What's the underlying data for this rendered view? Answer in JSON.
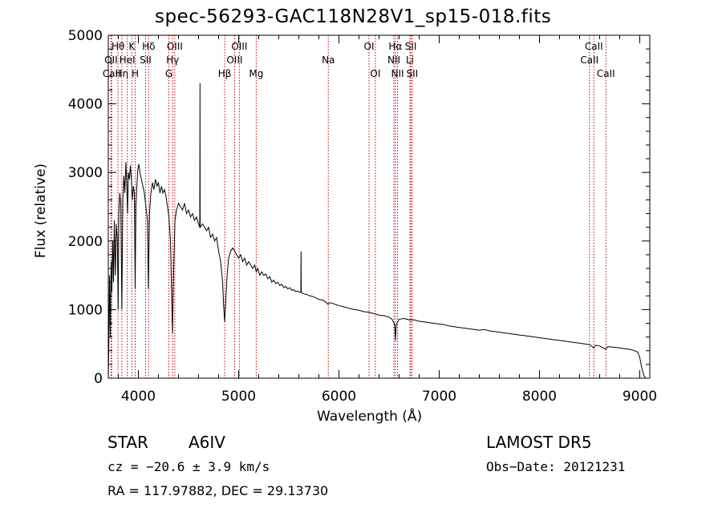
{
  "chart_data": {
    "type": "line",
    "title": "spec-56293-GAC118N28V1_sp15-018.fits",
    "xlabel": "Wavelength (Å)",
    "ylabel": "Flux (relative)",
    "xlim": [
      3700,
      9100
    ],
    "ylim": [
      0,
      5000
    ],
    "x_ticks": [
      4000,
      5000,
      6000,
      7000,
      8000,
      9000
    ],
    "y_ticks": [
      0,
      1000,
      2000,
      3000,
      4000,
      5000
    ],
    "grid": false,
    "series": [
      {
        "points": [
          [
            3700,
            0
          ],
          [
            3705,
            450
          ],
          [
            3712,
            1500
          ],
          [
            3720,
            600
          ],
          [
            3728,
            1700
          ],
          [
            3735,
            1250
          ],
          [
            3745,
            2000
          ],
          [
            3752,
            1400
          ],
          [
            3760,
            2300
          ],
          [
            3770,
            1500
          ],
          [
            3780,
            2250
          ],
          [
            3790,
            2000
          ],
          [
            3798,
            1000
          ],
          [
            3805,
            2400
          ],
          [
            3815,
            2700
          ],
          [
            3825,
            2500
          ],
          [
            3835,
            1000
          ],
          [
            3845,
            2600
          ],
          [
            3855,
            2950
          ],
          [
            3865,
            2700
          ],
          [
            3875,
            3150
          ],
          [
            3885,
            2800
          ],
          [
            3892,
            2400
          ],
          [
            3900,
            3000
          ],
          [
            3910,
            2900
          ],
          [
            3920,
            3100
          ],
          [
            3930,
            2900
          ],
          [
            3940,
            2600
          ],
          [
            3950,
            2800
          ],
          [
            3960,
            2700
          ],
          [
            3968,
            1300
          ],
          [
            3975,
            2500
          ],
          [
            3985,
            2800
          ],
          [
            3995,
            3050
          ],
          [
            4005,
            3120
          ],
          [
            4015,
            3000
          ],
          [
            4030,
            2900
          ],
          [
            4045,
            2800
          ],
          [
            4060,
            2700
          ],
          [
            4075,
            2500
          ],
          [
            4090,
            2300
          ],
          [
            4100,
            1300
          ],
          [
            4110,
            2400
          ],
          [
            4125,
            2700
          ],
          [
            4140,
            2850
          ],
          [
            4155,
            2750
          ],
          [
            4170,
            2900
          ],
          [
            4185,
            2800
          ],
          [
            4200,
            2850
          ],
          [
            4215,
            2700
          ],
          [
            4230,
            2800
          ],
          [
            4245,
            2700
          ],
          [
            4260,
            2750
          ],
          [
            4275,
            2650
          ],
          [
            4290,
            2500
          ],
          [
            4305,
            2350
          ],
          [
            4320,
            2000
          ],
          [
            4330,
            1300
          ],
          [
            4340,
            650
          ],
          [
            4350,
            1500
          ],
          [
            4365,
            2300
          ],
          [
            4380,
            2450
          ],
          [
            4400,
            2550
          ],
          [
            4420,
            2500
          ],
          [
            4440,
            2450
          ],
          [
            4460,
            2550
          ],
          [
            4480,
            2400
          ],
          [
            4500,
            2450
          ],
          [
            4520,
            2350
          ],
          [
            4540,
            2400
          ],
          [
            4560,
            2300
          ],
          [
            4580,
            2350
          ],
          [
            4600,
            2250
          ],
          [
            4612,
            2200
          ],
          [
            4614,
            4300
          ],
          [
            4616,
            2200
          ],
          [
            4640,
            2250
          ],
          [
            4660,
            2200
          ],
          [
            4680,
            2150
          ],
          [
            4700,
            2200
          ],
          [
            4720,
            2050
          ],
          [
            4740,
            2100
          ],
          [
            4760,
            2000
          ],
          [
            4780,
            2050
          ],
          [
            4800,
            1850
          ],
          [
            4820,
            1700
          ],
          [
            4840,
            1400
          ],
          [
            4850,
            1050
          ],
          [
            4861,
            820
          ],
          [
            4872,
            1150
          ],
          [
            4885,
            1500
          ],
          [
            4900,
            1750
          ],
          [
            4920,
            1850
          ],
          [
            4940,
            1900
          ],
          [
            4960,
            1850
          ],
          [
            4980,
            1800
          ],
          [
            5000,
            1750
          ],
          [
            5020,
            1800
          ],
          [
            5040,
            1700
          ],
          [
            5060,
            1750
          ],
          [
            5080,
            1650
          ],
          [
            5100,
            1700
          ],
          [
            5120,
            1650
          ],
          [
            5140,
            1600
          ],
          [
            5160,
            1650
          ],
          [
            5175,
            1550
          ],
          [
            5190,
            1600
          ],
          [
            5210,
            1500
          ],
          [
            5230,
            1550
          ],
          [
            5250,
            1500
          ],
          [
            5270,
            1520
          ],
          [
            5290,
            1450
          ],
          [
            5310,
            1480
          ],
          [
            5330,
            1400
          ],
          [
            5350,
            1430
          ],
          [
            5370,
            1380
          ],
          [
            5390,
            1400
          ],
          [
            5410,
            1350
          ],
          [
            5430,
            1370
          ],
          [
            5450,
            1320
          ],
          [
            5470,
            1340
          ],
          [
            5490,
            1300
          ],
          [
            5510,
            1320
          ],
          [
            5530,
            1280
          ],
          [
            5550,
            1290
          ],
          [
            5570,
            1260
          ],
          [
            5590,
            1270
          ],
          [
            5610,
            1250
          ],
          [
            5620,
            1250
          ],
          [
            5622,
            1850
          ],
          [
            5624,
            1250
          ],
          [
            5650,
            1230
          ],
          [
            5680,
            1220
          ],
          [
            5710,
            1200
          ],
          [
            5740,
            1190
          ],
          [
            5770,
            1170
          ],
          [
            5800,
            1150
          ],
          [
            5830,
            1140
          ],
          [
            5860,
            1120
          ],
          [
            5890,
            1080
          ],
          [
            5910,
            1100
          ],
          [
            5940,
            1090
          ],
          [
            5970,
            1070
          ],
          [
            6000,
            1060
          ],
          [
            6050,
            1040
          ],
          [
            6100,
            1020
          ],
          [
            6150,
            1000
          ],
          [
            6200,
            990
          ],
          [
            6250,
            970
          ],
          [
            6300,
            960
          ],
          [
            6350,
            940
          ],
          [
            6400,
            920
          ],
          [
            6450,
            910
          ],
          [
            6500,
            890
          ],
          [
            6530,
            860
          ],
          [
            6555,
            780
          ],
          [
            6563,
            550
          ],
          [
            6572,
            780
          ],
          [
            6600,
            860
          ],
          [
            6650,
            870
          ],
          [
            6700,
            850
          ],
          [
            6750,
            850
          ],
          [
            6800,
            830
          ],
          [
            6850,
            820
          ],
          [
            6900,
            810
          ],
          [
            6950,
            800
          ],
          [
            7000,
            790
          ],
          [
            7050,
            780
          ],
          [
            7100,
            760
          ],
          [
            7150,
            750
          ],
          [
            7200,
            740
          ],
          [
            7250,
            730
          ],
          [
            7300,
            720
          ],
          [
            7350,
            710
          ],
          [
            7400,
            700
          ],
          [
            7450,
            710
          ],
          [
            7500,
            690
          ],
          [
            7550,
            680
          ],
          [
            7600,
            670
          ],
          [
            7650,
            660
          ],
          [
            7700,
            650
          ],
          [
            7750,
            640
          ],
          [
            7800,
            630
          ],
          [
            7850,
            620
          ],
          [
            7900,
            610
          ],
          [
            7950,
            600
          ],
          [
            8000,
            590
          ],
          [
            8050,
            580
          ],
          [
            8100,
            570
          ],
          [
            8150,
            560
          ],
          [
            8200,
            550
          ],
          [
            8250,
            540
          ],
          [
            8300,
            530
          ],
          [
            8350,
            520
          ],
          [
            8400,
            510
          ],
          [
            8450,
            500
          ],
          [
            8500,
            490
          ],
          [
            8542,
            440
          ],
          [
            8560,
            480
          ],
          [
            8600,
            470
          ],
          [
            8662,
            420
          ],
          [
            8680,
            460
          ],
          [
            8750,
            450
          ],
          [
            8800,
            440
          ],
          [
            8850,
            430
          ],
          [
            8900,
            420
          ],
          [
            8950,
            400
          ],
          [
            8980,
            380
          ],
          [
            9000,
            300
          ],
          [
            9020,
            150
          ],
          [
            9040,
            40
          ],
          [
            9060,
            0
          ]
        ]
      }
    ],
    "line_markers": [
      {
        "label": "Hθ",
        "x": 3797,
        "row": 1
      },
      {
        "label": "OII",
        "x": 3727,
        "row": 2
      },
      {
        "label": "CaII",
        "x": 3734,
        "row": 3
      },
      {
        "label": "Hη",
        "x": 3835,
        "row": 3
      },
      {
        "label": "HeI",
        "x": 3889,
        "row": 2
      },
      {
        "label": "K",
        "x": 3934,
        "row": 1
      },
      {
        "label": "SII",
        "x": 4072,
        "row": 2
      },
      {
        "label": "H",
        "x": 3968,
        "row": 3
      },
      {
        "label": "Hδ",
        "x": 4102,
        "row": 1
      },
      {
        "label": "OIII",
        "x": 4363,
        "row": 1
      },
      {
        "label": "Hγ",
        "x": 4341,
        "row": 2
      },
      {
        "label": "G",
        "x": 4304,
        "row": 3
      },
      {
        "label": "Hβ",
        "x": 4861,
        "row": 3
      },
      {
        "label": "OIII",
        "x": 5007,
        "row": 1
      },
      {
        "label": "OIII",
        "x": 4959,
        "row": 2
      },
      {
        "label": "Mg",
        "x": 5175,
        "row": 3
      },
      {
        "label": "Na",
        "x": 5894,
        "row": 2
      },
      {
        "label": "OI",
        "x": 6300,
        "row": 1
      },
      {
        "label": "OI",
        "x": 6363,
        "row": 3
      },
      {
        "label": "Hα",
        "x": 6563,
        "row": 1
      },
      {
        "label": "NII",
        "x": 6548,
        "row": 2
      },
      {
        "label": "NII",
        "x": 6584,
        "row": 3
      },
      {
        "label": "SII",
        "x": 6717,
        "row": 1
      },
      {
        "label": "Li",
        "x": 6708,
        "row": 2
      },
      {
        "label": "SII",
        "x": 6731,
        "row": 3
      },
      {
        "label": "CaII",
        "x": 8542,
        "row": 1
      },
      {
        "label": "CaII",
        "x": 8498,
        "row": 2
      },
      {
        "label": "CaII",
        "x": 8662,
        "row": 3
      }
    ],
    "marker_color": "#cc0000"
  },
  "info": {
    "object_class": "STAR",
    "subclass": "A6IV",
    "survey": "LAMOST DR5",
    "redshift": "cz = −20.6 ± 3.9 km/s",
    "obs_date": "Obs−Date: 20121231",
    "coords": "RA = 117.97882, DEC =  29.13730"
  }
}
